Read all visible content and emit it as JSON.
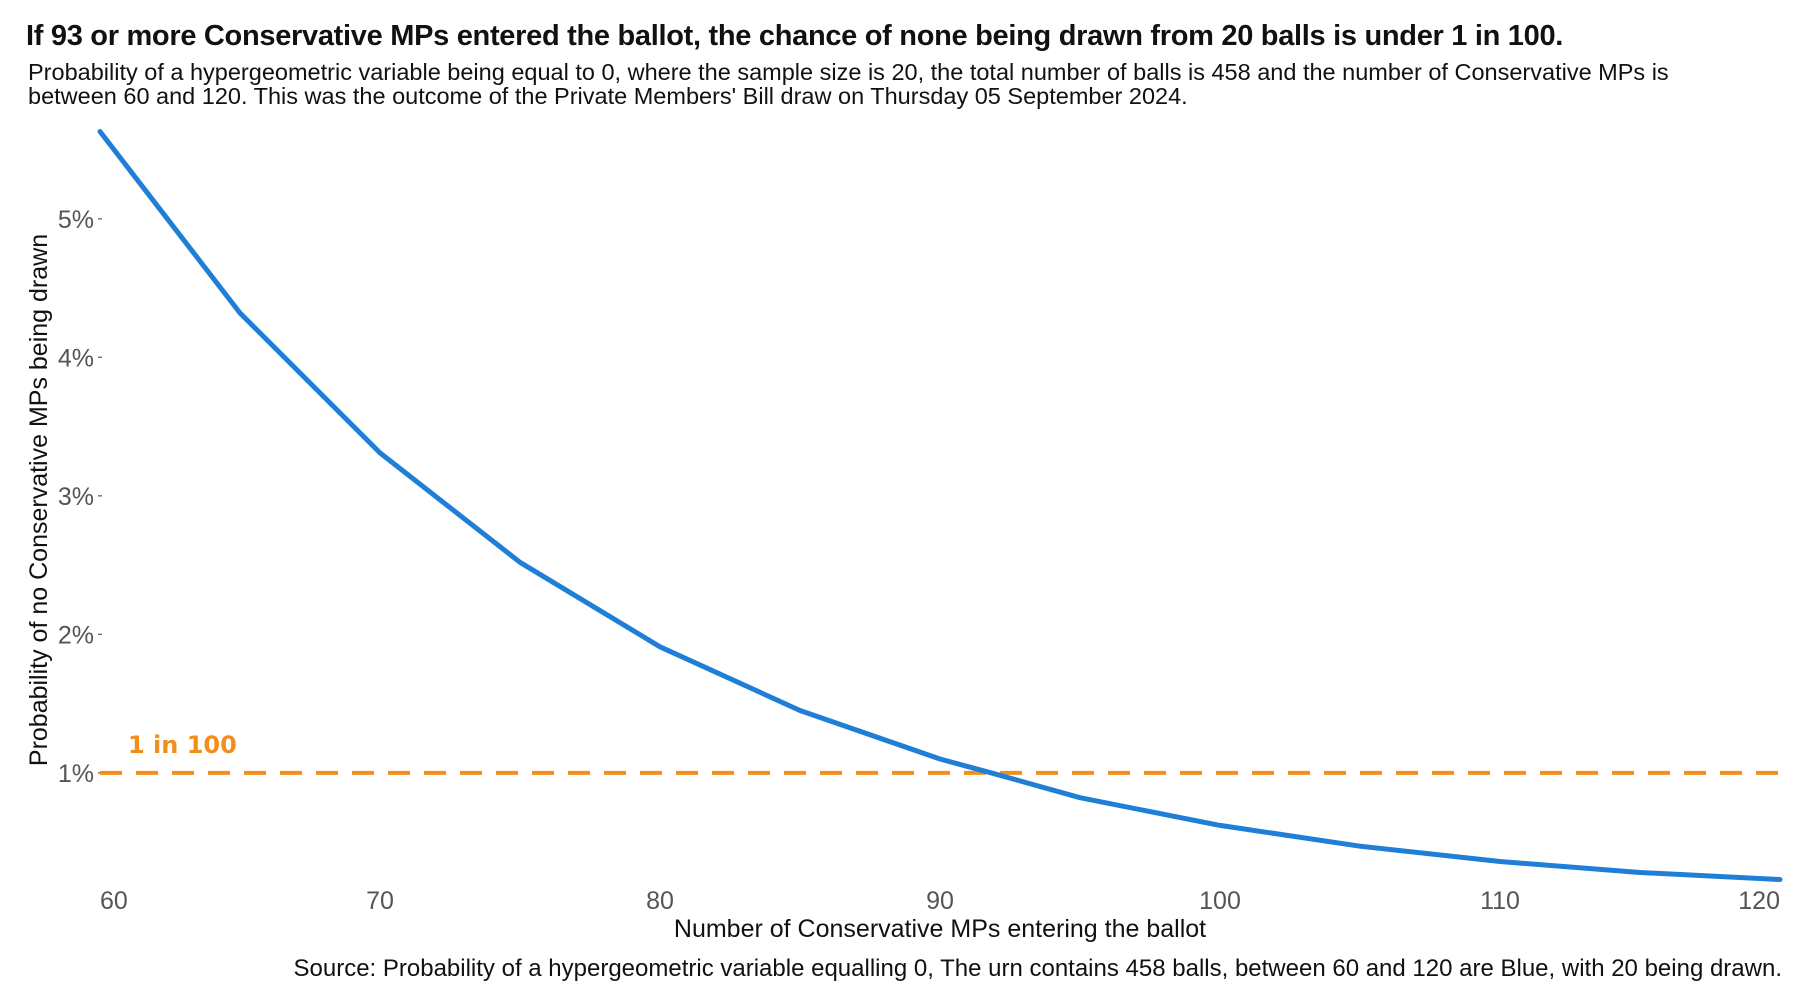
{
  "title": "If 93 or more Conservative MPs entered the ballot, the chance of none being drawn from 20 balls is under 1 in 100.",
  "subtitle": "Probability of a hypergeometric variable being equal to 0, where the sample size is 20, the total number of balls is 458 and the number of Conservative MPs is between 60 and 120. This was the outcome of the Private Members' Bill draw on Thursday 05 September 2024.",
  "source": "Source: Probability of a hypergeometric variable equalling 0, The urn contains 458 balls, between 60 and 120 are Blue, with 20 being drawn.",
  "chart_data": {
    "type": "line",
    "xlabel": "Number of Conservative MPs entering the ballot",
    "ylabel": "Probability of no Conservative MPs being drawn",
    "xlim": [
      60,
      120
    ],
    "ylim": [
      0.19,
      5.8
    ],
    "x_ticks": [
      60,
      70,
      80,
      90,
      100,
      110,
      120
    ],
    "x_tick_labels": [
      "60",
      "70",
      "80",
      "90",
      "100",
      "110",
      "120"
    ],
    "y_ticks": [
      1,
      2,
      3,
      4,
      5
    ],
    "y_tick_labels": [
      "1%",
      "2%",
      "3%",
      "4%",
      "5%"
    ],
    "grid": false,
    "series": [
      {
        "color": "#1f7fd6",
        "x": [
          60,
          65,
          70,
          75,
          80,
          85,
          90,
          92,
          95,
          100,
          105,
          110,
          115,
          120
        ],
        "y": [
          5.63,
          4.32,
          3.31,
          2.52,
          1.91,
          1.45,
          1.1,
          0.99,
          0.82,
          0.62,
          0.47,
          0.36,
          0.28,
          0.23
        ]
      }
    ],
    "reference_line": {
      "y": 1,
      "label": "1 in 100",
      "color": "#f28e1c",
      "style": "dashed"
    }
  }
}
